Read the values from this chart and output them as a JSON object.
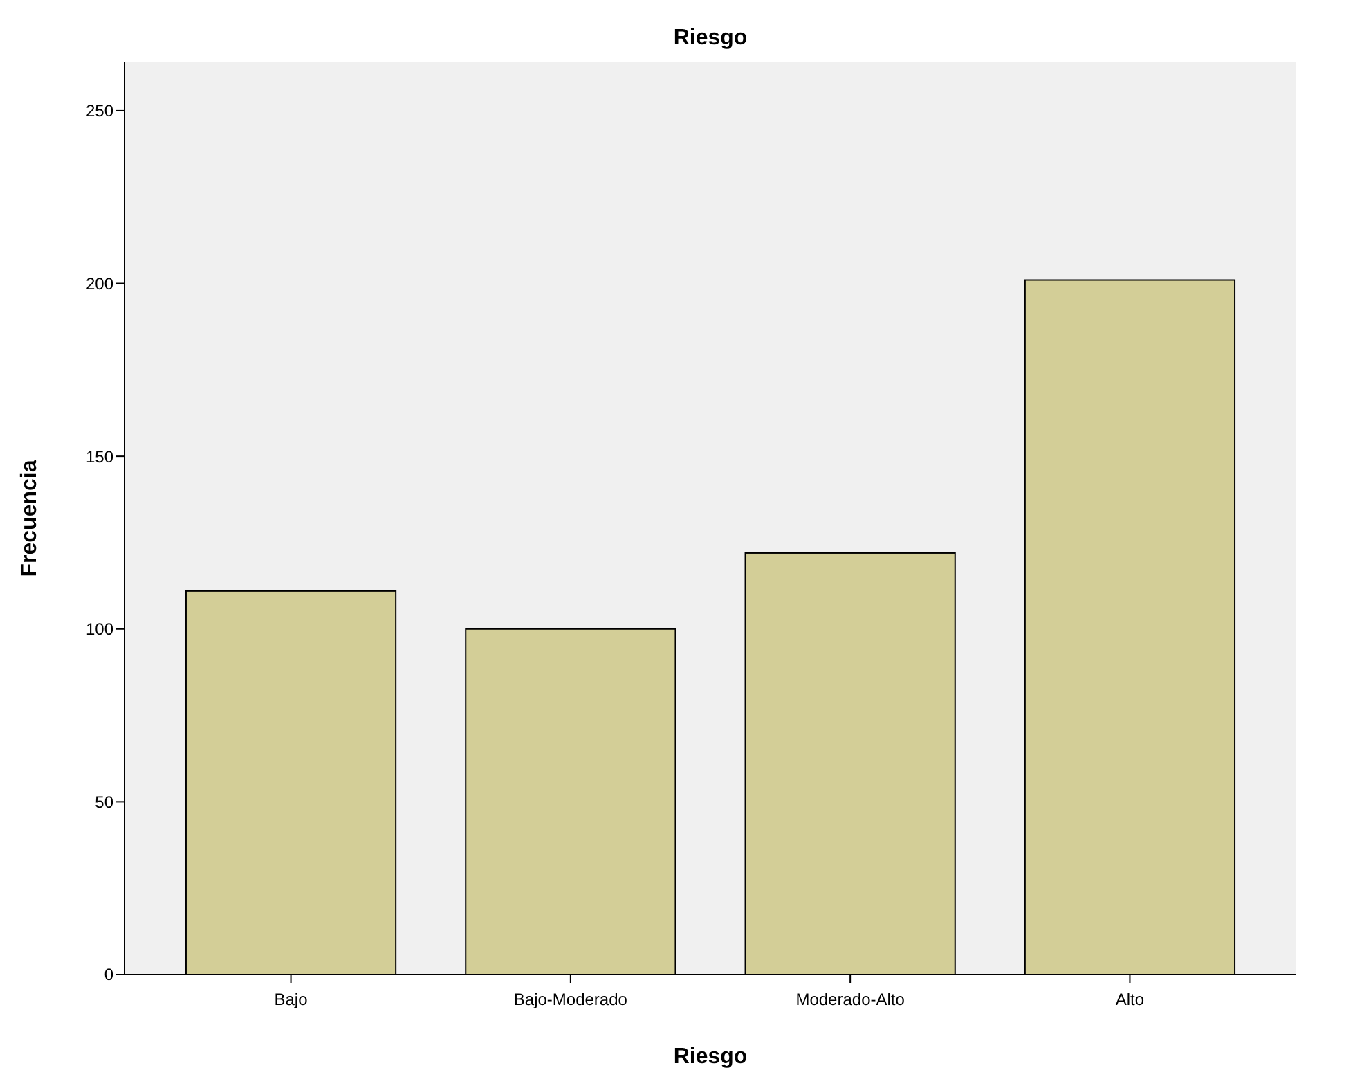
{
  "chart_data": {
    "type": "bar",
    "title": "Riesgo",
    "xlabel": "Riesgo",
    "ylabel": "Frecuencia",
    "categories": [
      "Bajo",
      "Bajo-Moderado",
      "Moderado-Alto",
      "Alto"
    ],
    "values": [
      111,
      100,
      122,
      201
    ],
    "color": "#d3ce97",
    "ylim": [
      0,
      264
    ],
    "yticks": [
      0,
      50,
      100,
      150,
      200,
      250
    ],
    "grid": false
  }
}
